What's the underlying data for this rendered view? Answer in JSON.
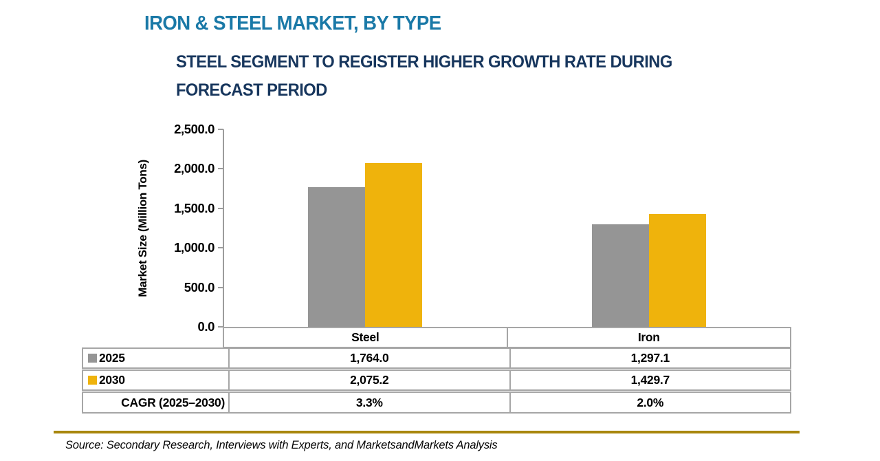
{
  "header": {
    "title": "IRON & STEEL MARKET, BY TYPE",
    "subtitle_lines": [
      "STEEL SEGMENT TO REGISTER HIGHER GROWTH RATE DURING",
      "FORECAST PERIOD"
    ]
  },
  "chart_data": {
    "type": "bar",
    "title": "IRON & STEEL MARKET, BY TYPE",
    "subtitle": "STEEL SEGMENT TO REGISTER HIGHER GROWTH RATE DURING FORECAST PERIOD",
    "ylabel": "Market Size (Million Tons)",
    "xlabel": "",
    "ylim": [
      0,
      2500
    ],
    "ytick_step": 500,
    "ytick_labels": [
      "0.0",
      "500.0",
      "1,000.0",
      "1,500.0",
      "2,000.0",
      "2,500.0"
    ],
    "grid": false,
    "legend_position": "table-left",
    "categories": [
      "Steel",
      "Iron"
    ],
    "series": [
      {
        "name": "2025",
        "color": "#959595",
        "values": [
          1764.0,
          1297.1
        ],
        "display_values": [
          "1,764.0",
          "1,297.1"
        ]
      },
      {
        "name": "2030",
        "color": "#EFB30C",
        "values": [
          2075.2,
          1429.7
        ],
        "display_values": [
          "2,075.2",
          "1,429.7"
        ]
      }
    ],
    "cagr_row": {
      "label": "CAGR (2025–2030)",
      "values": [
        "3.3%",
        "2.0%"
      ]
    }
  },
  "colors": {
    "title_text": "#1A79A7",
    "subtitle_text": "#17365D",
    "bar_2025": "#959595",
    "bar_2030": "#EFB30C",
    "axis_line": "#9C9C9C",
    "table_border": "#A6A6A6",
    "footer_rule": "#A8860D"
  },
  "footer": {
    "source": "Source: Secondary Research, Interviews with Experts, and MarketsandMarkets Analysis"
  }
}
